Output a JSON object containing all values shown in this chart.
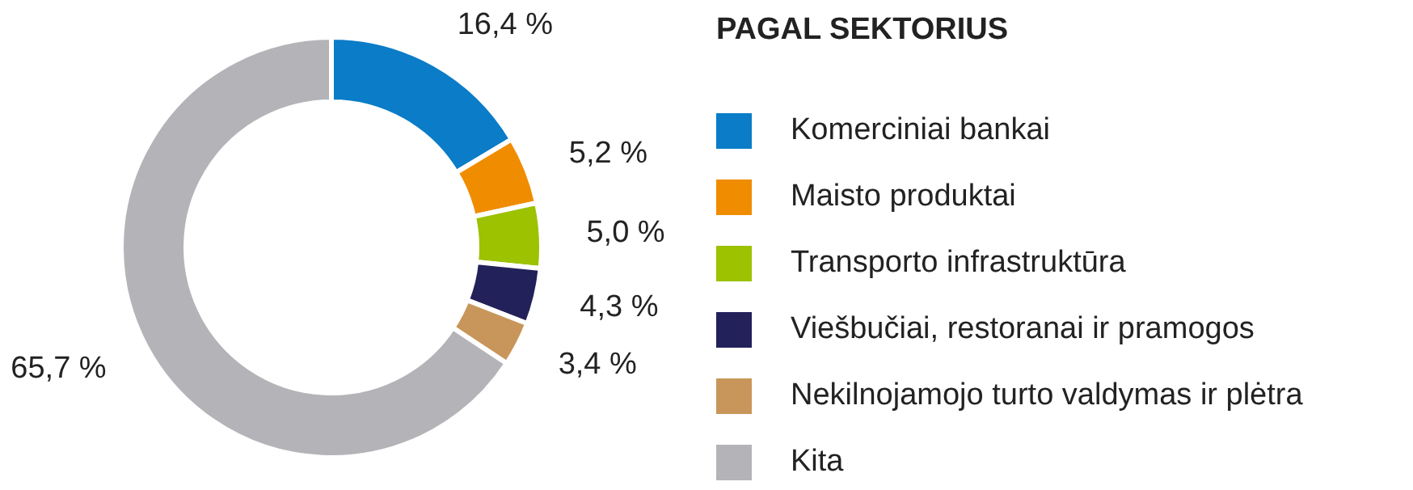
{
  "chart_data": {
    "type": "donut",
    "legend_title": "PAGAL SEKTORIUS",
    "categories": [
      "Komerciniai bankai",
      "Maisto produktai",
      "Transporto infrastruktūra",
      "Viešbučiai, restoranai ir pramogos",
      "Nekilnojamojo turto valdymas ir plėtra",
      "Kita"
    ],
    "values": [
      16.4,
      5.2,
      5.0,
      4.3,
      3.4,
      65.7
    ],
    "value_labels": [
      "16,4 %",
      "5,2 %",
      "5,0 %",
      "4,3 %",
      "3,4 %",
      "65,7 %"
    ],
    "colors": [
      "#0a7cc8",
      "#f08c00",
      "#9cc200",
      "#23215a",
      "#c8965a",
      "#b4b4b8"
    ],
    "legend": "right"
  }
}
